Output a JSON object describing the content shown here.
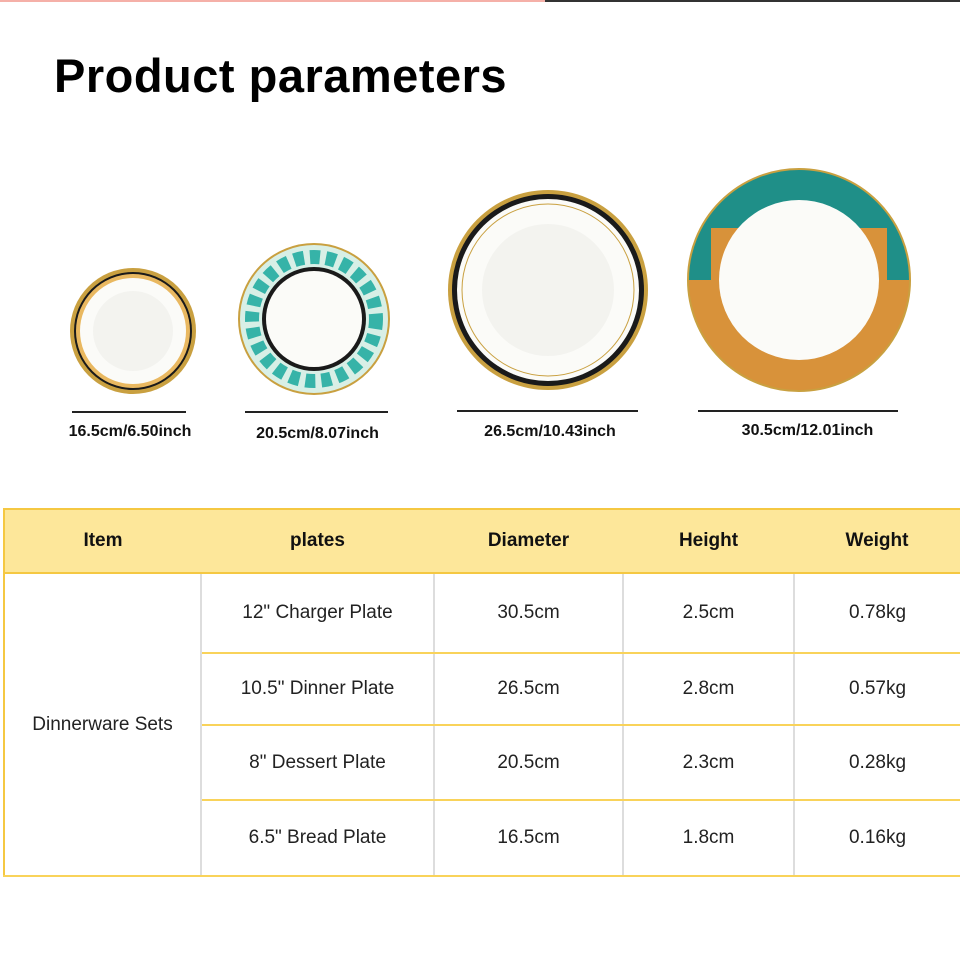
{
  "title": "Product parameters",
  "plates": [
    {
      "label": "16.5cm/6.50inch"
    },
    {
      "label": "20.5cm/8.07inch"
    },
    {
      "label": "26.5cm/10.43inch"
    },
    {
      "label": "30.5cm/12.01inch"
    }
  ],
  "colors": {
    "header_bg": "#fde79a",
    "border": "#f5c842",
    "teal": "#1f8f88",
    "orange": "#d8923a",
    "gold": "#c9a040"
  },
  "table": {
    "headers": [
      "Item",
      "plates",
      "Diameter",
      "Height",
      "Weight"
    ],
    "item": "Dinnerware Sets",
    "rows": [
      [
        "12\" Charger Plate",
        "30.5cm",
        "2.5cm",
        "0.78kg"
      ],
      [
        "10.5\" Dinner Plate",
        "26.5cm",
        "2.8cm",
        "0.57kg"
      ],
      [
        "8\" Dessert Plate",
        "20.5cm",
        "2.3cm",
        "0.28kg"
      ],
      [
        "6.5\" Bread Plate",
        "16.5cm",
        "1.8cm",
        "0.16kg"
      ]
    ]
  }
}
